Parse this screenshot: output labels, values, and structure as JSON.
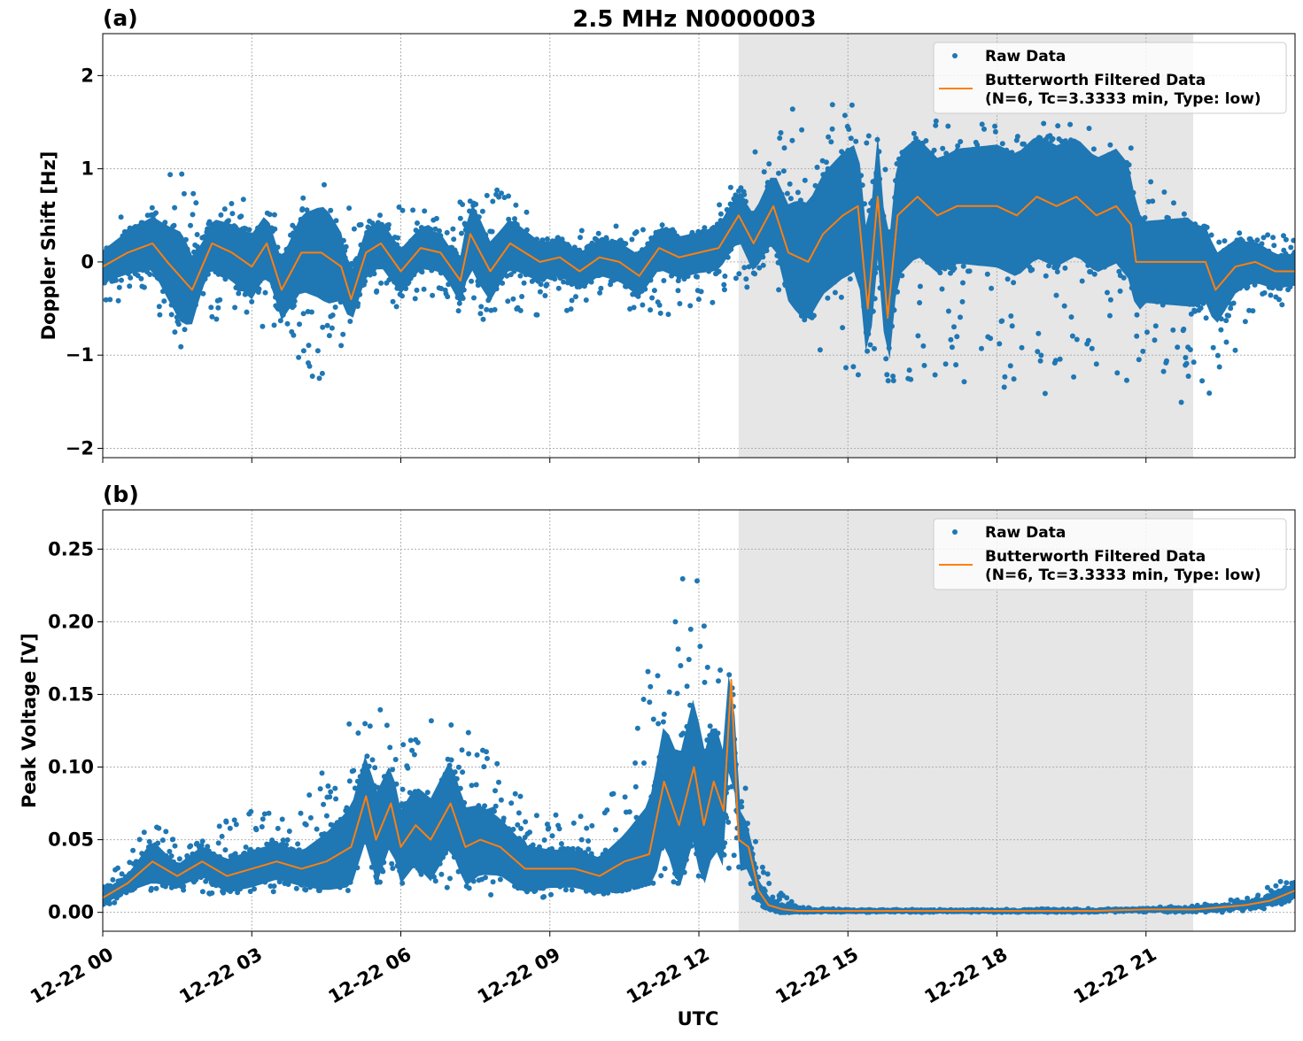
{
  "figure": {
    "title": "2.5 MHz N0000003",
    "xlabel": "UTC"
  },
  "colors": {
    "raw": "#1f77b4",
    "filtered": "#ff7f0e",
    "shade": "#e6e6e6",
    "grid": "#b0b0b0"
  },
  "chart_data": [
    {
      "type": "scatter",
      "panel_label": "(a)",
      "ylabel": "Doppler Shift [Hz]",
      "ylim": [
        -2.1,
        2.45
      ],
      "yticks": [
        -2,
        -1,
        0,
        1,
        2
      ],
      "ytick_labels": [
        "−2",
        "−1",
        "0",
        "1",
        "2"
      ],
      "xlim_hours": [
        0,
        24
      ],
      "x_tick_labels": [
        "12-22 00",
        "12-22 03",
        "12-22 06",
        "12-22 09",
        "12-22 12",
        "12-22 15",
        "12-22 18",
        "12-22 21"
      ],
      "x_tick_hours": [
        0,
        3,
        6,
        9,
        12,
        15,
        18,
        21
      ],
      "shaded_interval_hours": [
        12.8,
        21.95
      ],
      "grid": true,
      "legend_position": "top-right",
      "legend": [
        "Raw Data",
        "Butterworth Filtered Data\n(N=6, Tc=3.3333 min, Type: low)"
      ],
      "series": [
        {
          "name": "Raw Data",
          "style": "points",
          "envelope_description_hours": [
            0,
            1,
            1.6,
            2,
            3,
            3.5,
            4.5,
            5,
            6,
            7,
            7.5,
            8,
            9,
            10,
            11,
            12,
            12.8,
            13.5,
            14,
            15,
            16,
            17,
            18,
            19,
            20,
            20.7,
            21,
            22,
            23,
            24
          ],
          "upper": [
            0.3,
            0.8,
            1.15,
            0.5,
            0.9,
            0.6,
            0.85,
            0.6,
            0.6,
            0.5,
            0.9,
            0.8,
            0.3,
            0.4,
            0.45,
            0.4,
            0.9,
            1.5,
            1.8,
            1.8,
            1.7,
            1.55,
            1.5,
            1.5,
            1.5,
            1.5,
            1.0,
            0.4,
            0.3,
            0.3
          ],
          "lower": [
            -0.5,
            -0.5,
            -1.1,
            -0.6,
            -0.7,
            -0.8,
            -1.5,
            -0.6,
            -0.5,
            -0.4,
            -0.8,
            -0.5,
            -0.6,
            -0.5,
            -0.6,
            -0.6,
            -0.3,
            -0.2,
            -1.0,
            -1.3,
            -1.3,
            -1.2,
            -1.5,
            -1.5,
            -1.3,
            -1.3,
            -1.0,
            -1.8,
            -0.8,
            -0.4
          ]
        },
        {
          "name": "Butterworth Filtered Data\n(N=6, Tc=3.3333 min, Type: low)",
          "style": "line",
          "x_hours": [
            0,
            0.5,
            1,
            1.3,
            1.8,
            2.2,
            2.6,
            3,
            3.3,
            3.6,
            4,
            4.4,
            4.8,
            5,
            5.3,
            5.6,
            6,
            6.4,
            6.8,
            7.2,
            7.4,
            7.8,
            8.2,
            8.8,
            9.2,
            9.6,
            10,
            10.4,
            10.8,
            11.2,
            11.6,
            12,
            12.4,
            12.8,
            13.1,
            13.5,
            13.8,
            14.2,
            14.5,
            14.9,
            15.2,
            15.4,
            15.6,
            15.8,
            16,
            16.4,
            16.8,
            17.2,
            17.6,
            18,
            18.4,
            18.8,
            19.2,
            19.6,
            20,
            20.4,
            20.7,
            20.8,
            21,
            21.4,
            21.8,
            22.2,
            22.4,
            22.8,
            23.2,
            23.6,
            24
          ],
          "y": [
            -0.05,
            0.1,
            0.2,
            0.0,
            -0.3,
            0.2,
            0.1,
            -0.05,
            0.2,
            -0.3,
            0.1,
            0.1,
            -0.05,
            -0.4,
            0.1,
            0.2,
            -0.1,
            0.15,
            0.1,
            -0.2,
            0.3,
            -0.1,
            0.2,
            0.0,
            0.05,
            -0.1,
            0.05,
            0.0,
            -0.15,
            0.15,
            0.05,
            0.1,
            0.15,
            0.5,
            0.2,
            0.6,
            0.1,
            0.0,
            0.3,
            0.5,
            0.6,
            -0.5,
            0.7,
            -0.6,
            0.5,
            0.7,
            0.5,
            0.6,
            0.6,
            0.6,
            0.5,
            0.7,
            0.6,
            0.7,
            0.5,
            0.6,
            0.4,
            0.0,
            0.0,
            0.0,
            0.0,
            0.0,
            -0.3,
            -0.05,
            0.0,
            -0.1,
            -0.1
          ]
        }
      ]
    },
    {
      "type": "scatter",
      "panel_label": "(b)",
      "ylabel": "Peak Voltage [V]",
      "ylim": [
        -0.013,
        0.277
      ],
      "yticks": [
        0.0,
        0.05,
        0.1,
        0.15,
        0.2,
        0.25
      ],
      "ytick_labels": [
        "0.00",
        "0.05",
        "0.10",
        "0.15",
        "0.20",
        "0.25"
      ],
      "xlim_hours": [
        0,
        24
      ],
      "x_tick_labels": [
        "12-22 00",
        "12-22 03",
        "12-22 06",
        "12-22 09",
        "12-22 12",
        "12-22 15",
        "12-22 18",
        "12-22 21"
      ],
      "x_tick_hours": [
        0,
        3,
        6,
        9,
        12,
        15,
        18,
        21
      ],
      "shaded_interval_hours": [
        12.8,
        21.95
      ],
      "grid": true,
      "legend_position": "top-right",
      "legend": [
        "Raw Data",
        "Butterworth Filtered Data\n(N=6, Tc=3.3333 min, Type: low)"
      ],
      "series": [
        {
          "name": "Raw Data",
          "style": "points",
          "envelope_description_hours": [
            0,
            0.5,
            1,
            1.5,
            2,
            3,
            4,
            5,
            5.5,
            6,
            6.5,
            7,
            8,
            9,
            10,
            10.5,
            11,
            11.5,
            12,
            12.5,
            12.8,
            13.2,
            13.6,
            14,
            15,
            18,
            21,
            22,
            23,
            24
          ],
          "upper": [
            0.025,
            0.035,
            0.075,
            0.045,
            0.06,
            0.07,
            0.07,
            0.14,
            0.16,
            0.13,
            0.14,
            0.15,
            0.1,
            0.07,
            0.07,
            0.1,
            0.18,
            0.22,
            0.25,
            0.2,
            0.12,
            0.04,
            0.015,
            0.004,
            0.002,
            0.002,
            0.003,
            0.005,
            0.01,
            0.027
          ],
          "lower": [
            0.005,
            0.008,
            0.008,
            0.01,
            0.012,
            0.012,
            0.015,
            0.015,
            0.015,
            0.015,
            0.012,
            0.012,
            0.01,
            0.01,
            0.012,
            0.015,
            0.02,
            0.02,
            0.02,
            0.02,
            0.02,
            0.005,
            0.0,
            0.0,
            0.0,
            0.0,
            0.0,
            0.0,
            0.0,
            0.003
          ]
        },
        {
          "name": "Butterworth Filtered Data\n(N=6, Tc=3.3333 min, Type: low)",
          "style": "line",
          "x_hours": [
            0,
            0.5,
            1,
            1.5,
            2,
            2.5,
            3,
            3.5,
            4,
            4.5,
            5,
            5.3,
            5.5,
            5.8,
            6,
            6.3,
            6.6,
            7,
            7.3,
            7.6,
            8,
            8.5,
            9,
            9.5,
            10,
            10.5,
            11,
            11.3,
            11.6,
            11.9,
            12.1,
            12.3,
            12.5,
            12.65,
            12.8,
            13,
            13.2,
            13.4,
            13.7,
            14,
            14.5,
            16,
            18,
            20,
            21,
            22,
            23,
            23.5,
            24
          ],
          "y": [
            0.01,
            0.02,
            0.035,
            0.025,
            0.035,
            0.025,
            0.03,
            0.035,
            0.03,
            0.035,
            0.045,
            0.08,
            0.05,
            0.075,
            0.045,
            0.06,
            0.05,
            0.075,
            0.045,
            0.05,
            0.045,
            0.03,
            0.03,
            0.03,
            0.025,
            0.035,
            0.04,
            0.09,
            0.06,
            0.1,
            0.06,
            0.09,
            0.07,
            0.16,
            0.05,
            0.045,
            0.015,
            0.005,
            0.002,
            0.001,
            0.001,
            0.001,
            0.001,
            0.001,
            0.002,
            0.002,
            0.005,
            0.008,
            0.015
          ]
        }
      ]
    }
  ]
}
